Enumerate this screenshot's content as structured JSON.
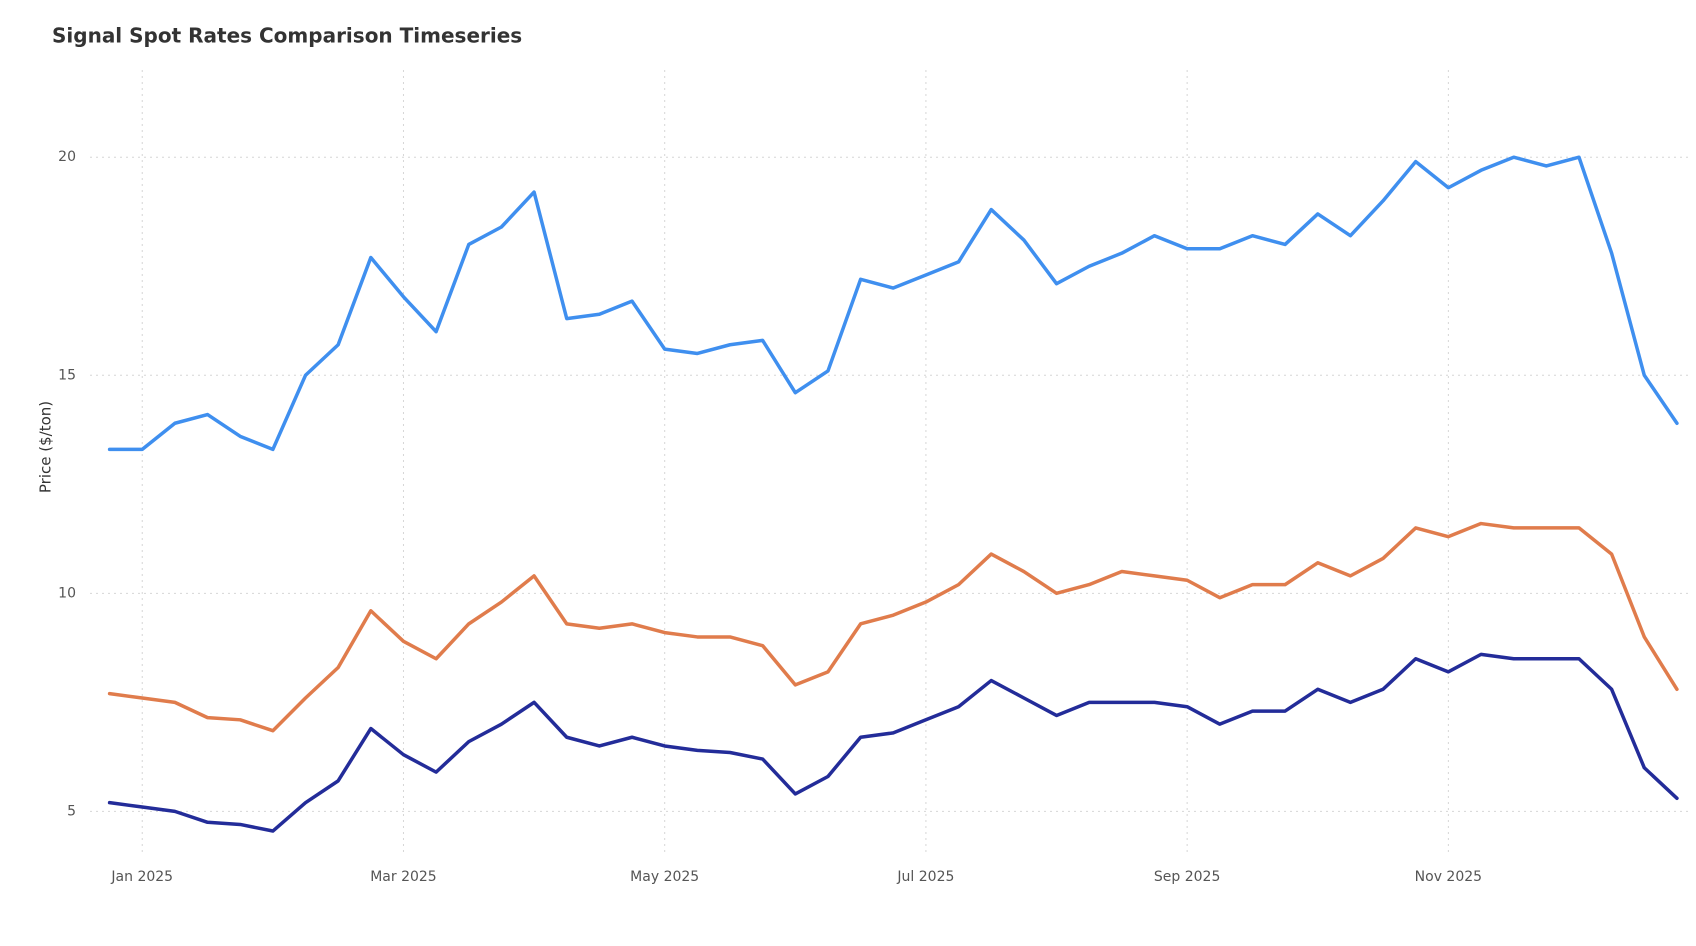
{
  "chart_data": {
    "type": "line",
    "title": "Signal Spot Rates Comparison Timeseries",
    "y_label": "Price ($/ton)",
    "x": [
      -0.25,
      0,
      0.25,
      0.5,
      0.75,
      1,
      1.25,
      1.5,
      1.75,
      2,
      2.25,
      2.5,
      2.75,
      3,
      3.25,
      3.5,
      3.75,
      4,
      4.25,
      4.5,
      4.75,
      5,
      5.25,
      5.5,
      5.75,
      6,
      6.25,
      6.5,
      6.75,
      7,
      7.25,
      7.5,
      7.75,
      8,
      8.25,
      8.5,
      8.75,
      9,
      9.25,
      9.5,
      9.75,
      10,
      10.25,
      10.5,
      10.75,
      11,
      11.25,
      11.5,
      11.75
    ],
    "series": [
      {
        "color": "#3f8fef",
        "values": [
          13.3,
          13.3,
          13.9,
          14.1,
          13.6,
          13.3,
          15.0,
          15.7,
          17.7,
          16.8,
          16.0,
          18.0,
          18.4,
          19.2,
          16.3,
          16.4,
          16.7,
          15.6,
          15.5,
          15.7,
          15.8,
          14.6,
          15.1,
          17.2,
          17.0,
          17.3,
          17.6,
          18.8,
          18.1,
          17.1,
          17.5,
          17.8,
          18.2,
          17.9,
          17.9,
          18.2,
          18.0,
          18.7,
          18.2,
          19.0,
          19.9,
          19.3,
          19.7,
          20.0,
          19.8,
          20.0,
          17.8,
          15.0,
          13.9
        ]
      },
      {
        "color": "#e07c4c",
        "values": [
          7.7,
          7.6,
          7.5,
          7.15,
          7.1,
          6.85,
          7.6,
          8.3,
          9.6,
          8.9,
          8.5,
          9.3,
          9.8,
          10.4,
          9.3,
          9.2,
          9.3,
          9.1,
          9.0,
          9.0,
          8.8,
          7.9,
          8.2,
          9.3,
          9.5,
          9.8,
          10.2,
          10.9,
          10.5,
          10.0,
          10.2,
          10.5,
          10.4,
          10.3,
          9.9,
          10.2,
          10.2,
          10.7,
          10.4,
          10.8,
          11.5,
          11.3,
          11.6,
          11.5,
          11.5,
          11.5,
          10.9,
          9.0,
          7.8
        ]
      },
      {
        "color": "#232c99",
        "values": [
          5.2,
          5.1,
          5.0,
          4.75,
          4.7,
          4.55,
          5.2,
          5.7,
          6.9,
          6.3,
          5.9,
          6.6,
          7.0,
          7.5,
          6.7,
          6.5,
          6.7,
          6.5,
          6.4,
          6.35,
          6.2,
          5.4,
          5.8,
          6.7,
          6.8,
          7.1,
          7.4,
          8.0,
          7.6,
          7.2,
          7.5,
          7.5,
          7.5,
          7.4,
          7.0,
          7.3,
          7.3,
          7.8,
          7.5,
          7.8,
          8.5,
          8.2,
          8.6,
          8.5,
          8.5,
          8.5,
          7.8,
          6.0,
          5.3
        ]
      }
    ],
    "xlim": [
      -0.4,
      11.85
    ],
    "xticks": [
      {
        "value": 0,
        "label": "Jan 2025"
      },
      {
        "value": 2,
        "label": "Mar 2025"
      },
      {
        "value": 4,
        "label": "May 2025"
      },
      {
        "value": 6,
        "label": "Jul 2025"
      },
      {
        "value": 8,
        "label": "Sep 2025"
      },
      {
        "value": 10,
        "label": "Nov 2025"
      }
    ],
    "ylim": [
      4,
      22
    ],
    "yticks": [
      5,
      10,
      15,
      20
    ],
    "grid": true
  }
}
